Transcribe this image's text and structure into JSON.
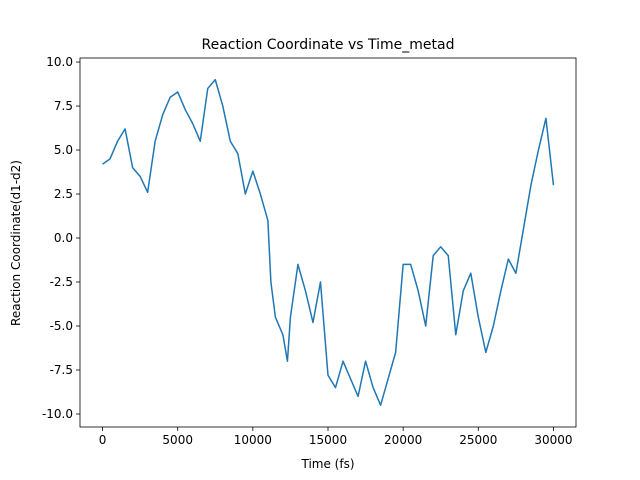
{
  "chart_data": {
    "type": "line",
    "title": "Reaction Coordinate vs Time_metad",
    "xlabel": "Time (fs)",
    "ylabel": "Reaction Coordinate(d1-d2)",
    "x": [
      0,
      500,
      1000,
      1500,
      2000,
      2500,
      3000,
      3500,
      4000,
      4500,
      5000,
      5500,
      6000,
      6500,
      7000,
      7500,
      8000,
      8500,
      9000,
      9500,
      10000,
      10500,
      11000,
      11200,
      11500,
      12000,
      12300,
      12500,
      13000,
      13500,
      14000,
      14500,
      15000,
      15500,
      16000,
      16500,
      17000,
      17500,
      18000,
      18500,
      19000,
      19500,
      20000,
      20500,
      21000,
      21500,
      22000,
      22500,
      23000,
      23500,
      24000,
      24500,
      25000,
      25500,
      26000,
      26500,
      27000,
      27500,
      28000,
      28500,
      29000,
      29500,
      30000
    ],
    "series": [
      {
        "name": "Reaction Coordinate",
        "color": "#1f77b4",
        "values": [
          4.2,
          4.5,
          5.5,
          6.2,
          4.0,
          3.5,
          2.6,
          5.5,
          7.0,
          8.0,
          8.3,
          7.3,
          6.5,
          5.5,
          8.5,
          9.0,
          7.5,
          5.5,
          4.8,
          2.5,
          3.8,
          2.5,
          1.0,
          -2.5,
          -4.5,
          -5.5,
          -7.0,
          -4.5,
          -1.5,
          -3.0,
          -4.8,
          -2.5,
          -7.8,
          -8.5,
          -7.0,
          -8.0,
          -9.0,
          -7.0,
          -8.5,
          -9.5,
          -8.0,
          -6.5,
          -1.5,
          -1.5,
          -3.0,
          -5.0,
          -1.0,
          -0.5,
          -1.0,
          -5.5,
          -3.0,
          -2.0,
          -4.5,
          -6.5,
          -5.0,
          -3.0,
          -1.2,
          -2.0,
          0.5,
          3.0,
          5.0,
          6.8,
          3.0
        ]
      }
    ],
    "xlim": [
      -1500,
      31500
    ],
    "ylim": [
      -10.74,
      10.23
    ],
    "xticks": [
      0,
      5000,
      10000,
      15000,
      20000,
      25000,
      30000
    ],
    "yticks": [
      {
        "value": -10,
        "label": "-10.0"
      },
      -7.5,
      {
        "value": -5,
        "label": "-5.0"
      },
      -2.5,
      {
        "value": 0,
        "label": "0.0"
      },
      2.5,
      {
        "value": 5,
        "label": "5.0"
      },
      7.5,
      {
        "value": 10,
        "label": "10.0"
      }
    ]
  }
}
